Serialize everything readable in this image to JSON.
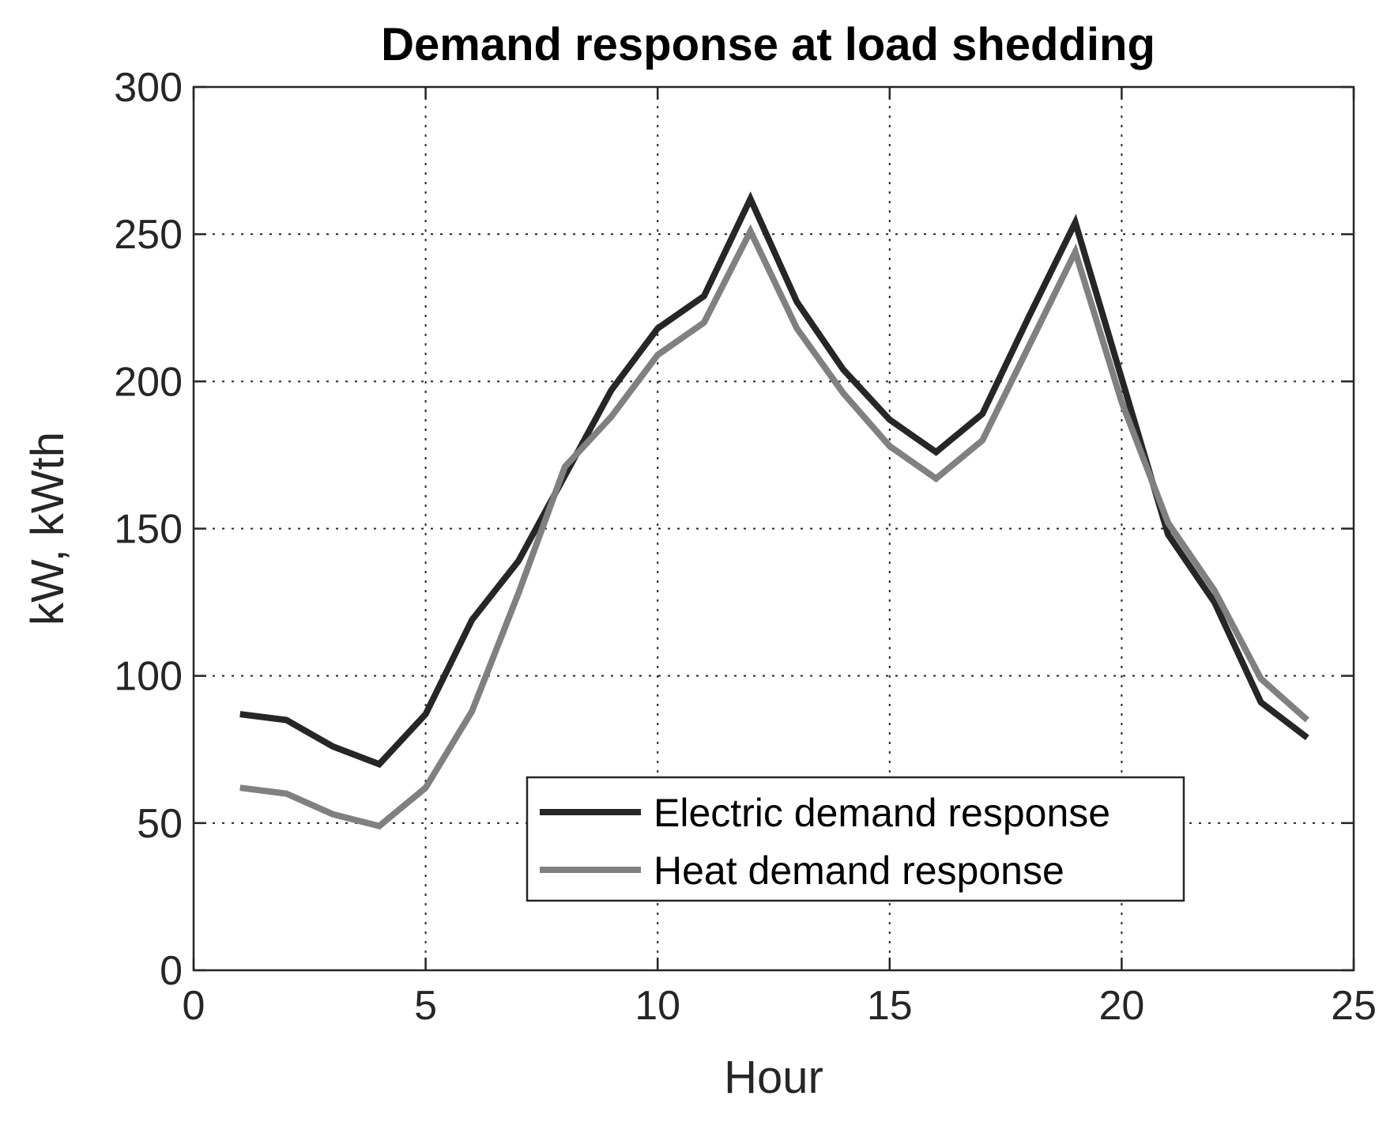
{
  "chart_data": {
    "type": "line",
    "title": "Demand response at load shedding",
    "xlabel": "Hour",
    "ylabel": "kW, kWth",
    "xlim": [
      0,
      25
    ],
    "ylim": [
      0,
      300
    ],
    "xticks": [
      0,
      5,
      10,
      15,
      20,
      25
    ],
    "yticks": [
      0,
      50,
      100,
      150,
      200,
      250,
      300
    ],
    "grid": true,
    "legend_position": "bottom-right",
    "x": [
      1,
      2,
      3,
      4,
      5,
      6,
      7,
      8,
      9,
      10,
      11,
      12,
      13,
      14,
      15,
      16,
      17,
      18,
      19,
      20,
      21,
      22,
      23,
      24
    ],
    "series": [
      {
        "name": "Electric demand response",
        "color": "#262626",
        "values": [
          87,
          85,
          76,
          70,
          87,
          119,
          139,
          168,
          197,
          218,
          229,
          262,
          227,
          204,
          187,
          176,
          189,
          222,
          254,
          201,
          148,
          125,
          91,
          79
        ]
      },
      {
        "name": "Heat demand response",
        "color": "#808080",
        "values": [
          62,
          60,
          53,
          49,
          62,
          88,
          128,
          171,
          188,
          209,
          220,
          251,
          218,
          196,
          178,
          167,
          180,
          212,
          244,
          193,
          152,
          129,
          99,
          85
        ]
      }
    ]
  }
}
